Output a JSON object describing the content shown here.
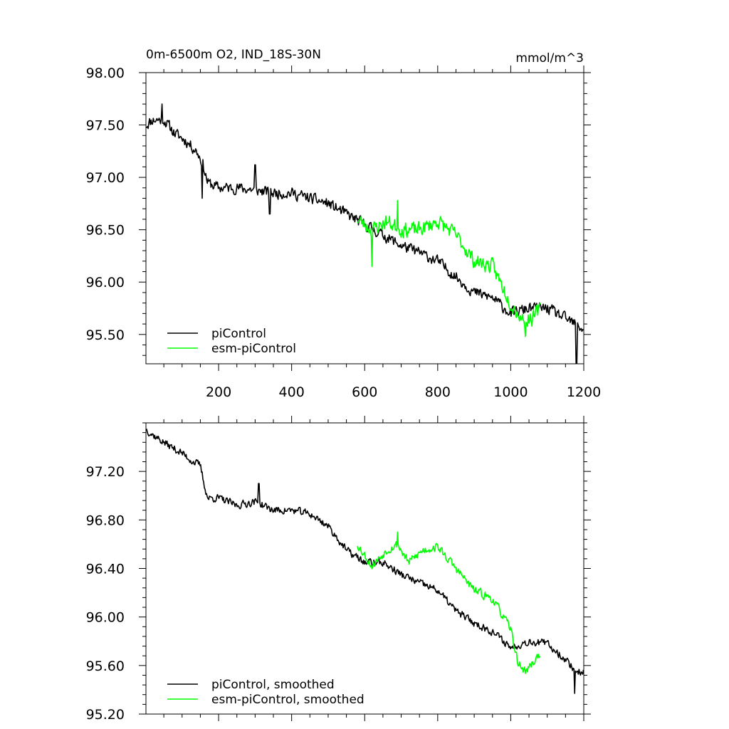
{
  "chart_data": [
    {
      "type": "line",
      "title": "0m-6500m O2, IND_18S-30N",
      "units": "mmol/m^3",
      "xlim": [
        1,
        1200
      ],
      "ylim": [
        95.22,
        98.0
      ],
      "x_ticks": [
        200,
        400,
        600,
        800,
        1000,
        1200
      ],
      "y_ticks": [
        95.5,
        96.0,
        96.5,
        97.0,
        97.5,
        98.0
      ],
      "y_tick_labels": [
        "95.50",
        "96.00",
        "96.50",
        "97.00",
        "97.50",
        "98.00"
      ],
      "legend_position": "bottom-left",
      "series": [
        {
          "name": "piControl",
          "color": "#000000",
          "x_range": [
            1,
            1200
          ],
          "trend_x": [
            1,
            20,
            50,
            80,
            110,
            140,
            155,
            170,
            200,
            250,
            300,
            350,
            400,
            450,
            500,
            550,
            600,
            650,
            700,
            750,
            800,
            850,
            900,
            950,
            1000,
            1050,
            1100,
            1150,
            1200
          ],
          "trend_y": [
            97.5,
            97.55,
            97.55,
            97.42,
            97.35,
            97.25,
            97.15,
            96.95,
            96.9,
            96.9,
            96.88,
            96.85,
            96.85,
            96.8,
            96.75,
            96.65,
            96.55,
            96.45,
            96.35,
            96.28,
            96.2,
            96.05,
            95.9,
            95.85,
            95.7,
            95.75,
            95.75,
            95.65,
            95.55
          ],
          "noise_amplitude": 0.06,
          "spikes": [
            [
              155,
              96.8
            ],
            [
              340,
              96.65
            ],
            [
              300,
              97.12
            ],
            [
              1180,
              95.22
            ],
            [
              45,
              97.7
            ]
          ],
          "seed": 11
        },
        {
          "name": "esm-piControl",
          "color": "#00ff00",
          "x_range": [
            580,
            1080
          ],
          "trend_x": [
            580,
            620,
            660,
            700,
            750,
            800,
            850,
            900,
            950,
            1000,
            1030,
            1060,
            1080
          ],
          "trend_y": [
            96.6,
            96.5,
            96.58,
            96.5,
            96.5,
            96.58,
            96.45,
            96.2,
            96.15,
            95.8,
            95.65,
            95.65,
            95.75
          ],
          "noise_amplitude": 0.08,
          "spikes": [
            [
              620,
              96.15
            ],
            [
              690,
              96.78
            ],
            [
              1040,
              95.48
            ]
          ],
          "seed": 23
        }
      ]
    },
    {
      "type": "line",
      "xlim": [
        1,
        1200
      ],
      "ylim": [
        95.2,
        97.6
      ],
      "x_ticks": [
        200,
        400,
        600,
        800,
        1000,
        1200
      ],
      "y_ticks": [
        95.2,
        95.6,
        96.0,
        96.4,
        96.8,
        97.2
      ],
      "y_tick_labels": [
        "95.20",
        "95.60",
        "96.00",
        "96.40",
        "96.80",
        "97.20"
      ],
      "legend_position": "bottom-left",
      "series": [
        {
          "name": "piControl, smoothed",
          "color": "#000000",
          "x_range": [
            1,
            1200
          ],
          "trend_x": [
            1,
            20,
            60,
            100,
            130,
            150,
            160,
            170,
            200,
            250,
            300,
            350,
            400,
            450,
            500,
            550,
            600,
            650,
            700,
            750,
            800,
            850,
            900,
            950,
            1000,
            1050,
            1100,
            1150,
            1180,
            1200
          ],
          "trend_y": [
            97.55,
            97.5,
            97.42,
            97.35,
            97.28,
            97.25,
            97.1,
            96.98,
            96.98,
            96.92,
            96.95,
            96.88,
            96.88,
            96.85,
            96.75,
            96.55,
            96.45,
            96.45,
            96.35,
            96.28,
            96.22,
            96.05,
            95.95,
            95.88,
            95.75,
            95.8,
            95.78,
            95.65,
            95.55,
            95.55
          ],
          "noise_amplitude": 0.035,
          "spikes": [
            [
              1175,
              95.37
            ],
            [
              310,
              97.1
            ]
          ],
          "seed": 37
        },
        {
          "name": "esm-piControl, smoothed",
          "color": "#00ff00",
          "x_range": [
            580,
            1080
          ],
          "trend_x": [
            580,
            620,
            660,
            690,
            720,
            760,
            800,
            850,
            900,
            950,
            1000,
            1020,
            1040,
            1060,
            1080
          ],
          "trend_y": [
            96.6,
            96.42,
            96.55,
            96.6,
            96.45,
            96.55,
            96.58,
            96.4,
            96.22,
            96.15,
            95.9,
            95.62,
            95.55,
            95.62,
            95.7
          ],
          "noise_amplitude": 0.04,
          "spikes": [
            [
              690,
              96.7
            ]
          ],
          "seed": 53
        }
      ]
    }
  ]
}
